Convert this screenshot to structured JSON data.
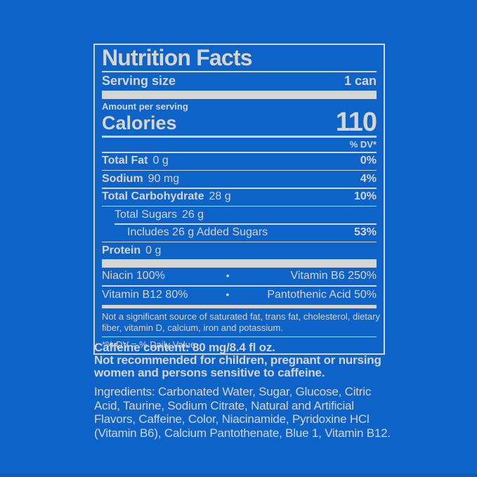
{
  "colors": {
    "background": "#0e63c8",
    "label_gray": "#d7d5d1"
  },
  "label": {
    "title": "Nutrition Facts",
    "serving": {
      "label": "Serving size",
      "value": "1 can"
    },
    "amount_per_serving": "Amount per serving",
    "calories": {
      "label": "Calories",
      "value": "110"
    },
    "dv_header": "% DV*",
    "rows": [
      {
        "name": "Total Fat",
        "amount": "0 g",
        "dv": "0%"
      },
      {
        "name": "Sodium",
        "amount": "90 mg",
        "dv": "4%"
      },
      {
        "name": "Total Carbohydrate",
        "amount": "28 g",
        "dv": "10%"
      },
      {
        "name": "Total Sugars",
        "amount": "26 g",
        "dv": ""
      },
      {
        "name": "Includes 26 g Added Sugars",
        "amount": "",
        "dv": "53%"
      },
      {
        "name": "Protein",
        "amount": "0 g",
        "dv": ""
      }
    ],
    "vitamins": [
      {
        "left": "Niacin 100%",
        "bullet": "•",
        "right": "Vitamin B6 250%"
      },
      {
        "left": "Vitamin B12 80%",
        "bullet": "•",
        "right": "Pantothenic Acid 50%"
      }
    ],
    "footnote_lines": [
      "Not a significant source of saturated fat, trans fat, cholesterol, dietary",
      "fiber, vitamin D, calcium, iron and potassium."
    ],
    "dv_definition": "*% DV = % Daily Value"
  },
  "below": {
    "caffeine_content": "Caffeine content: 80 mg/8.4 fl oz.",
    "warning_lines": [
      "Not recommended for children, pregnant or nursing",
      "women and persons sensitive to caffeine."
    ],
    "ingredient_lines": [
      "Ingredients: Carbonated Water, Sugar, Glucose, Citric",
      "Acid, Taurine, Sodium Citrate, Natural and Artificial",
      "Flavors, Caffeine, Color, Niacinamide, Pyridoxine HCl",
      "(Vitamin B6), Calcium Pantothenate, Blue 1, Vitamin B12."
    ]
  }
}
